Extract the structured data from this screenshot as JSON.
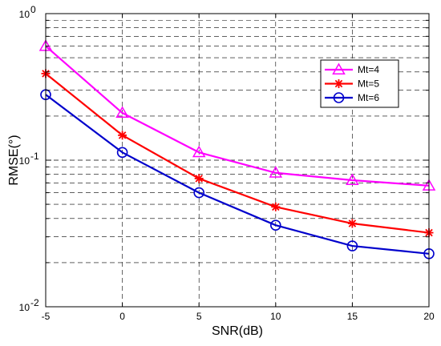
{
  "chart_data": {
    "type": "line",
    "title": "",
    "xlabel": "SNR(dB)",
    "ylabel": "RMSE(°)",
    "xlim": [
      -5,
      20
    ],
    "ylim": [
      0.01,
      1
    ],
    "yscale": "log",
    "grid": true,
    "x": [
      -5,
      0,
      5,
      10,
      15,
      20
    ],
    "x_tick_labels": [
      "-5",
      "0",
      "5",
      "10",
      "15",
      "20"
    ],
    "y_ticks": [
      0.01,
      0.1,
      1
    ],
    "y_tick_labels": [
      {
        "base": "10",
        "exp": "-2"
      },
      {
        "base": "10",
        "exp": "-1"
      },
      {
        "base": "10",
        "exp": "0"
      }
    ],
    "legend_position": "top-right",
    "series": [
      {
        "name": "Mt=4",
        "color": "#ff00ff",
        "marker": "triangle",
        "values": [
          0.6,
          0.21,
          0.113,
          0.082,
          0.073,
          0.067
        ]
      },
      {
        "name": "Mt=5",
        "color": "#ff0000",
        "marker": "asterisk",
        "values": [
          0.39,
          0.148,
          0.075,
          0.048,
          0.037,
          0.032
        ]
      },
      {
        "name": "Mt=6",
        "color": "#0000cc",
        "marker": "circle",
        "values": [
          0.28,
          0.113,
          0.06,
          0.036,
          0.026,
          0.023
        ]
      }
    ]
  }
}
